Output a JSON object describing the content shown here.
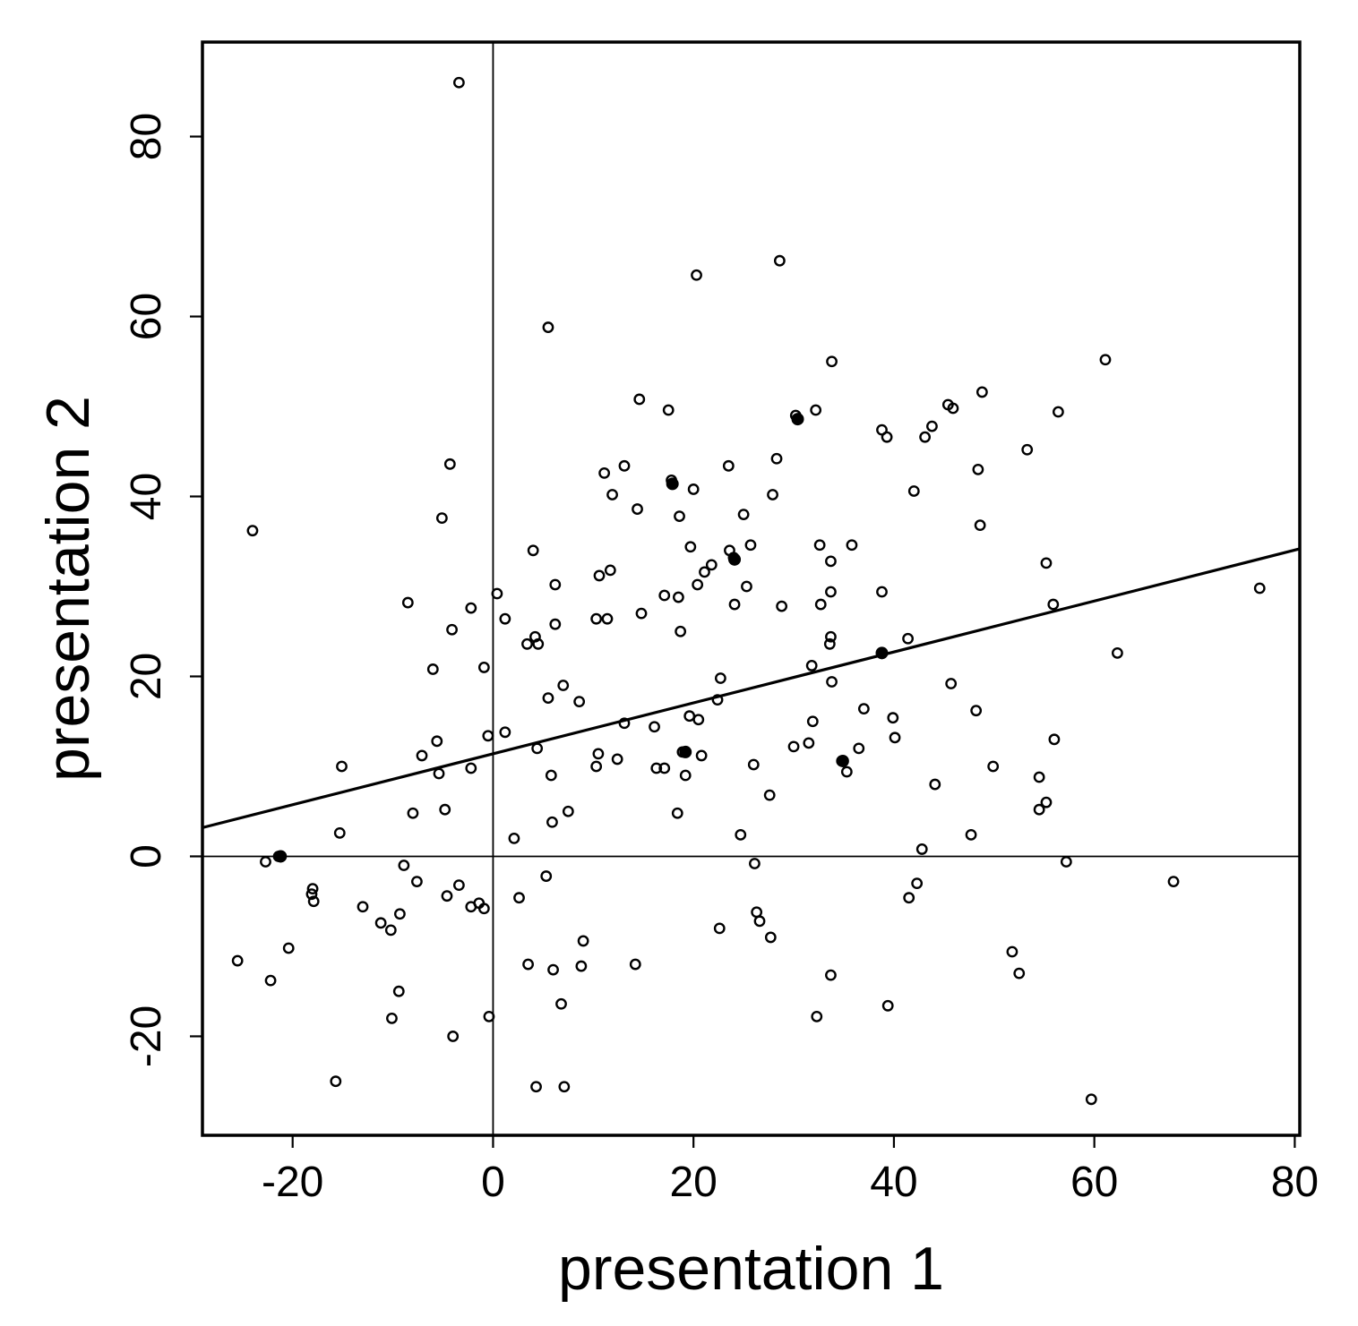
{
  "chart_data": {
    "type": "scatter",
    "xlabel": "presentation 1",
    "ylabel": "presentation 2",
    "xlim": [
      -29,
      80.5
    ],
    "ylim": [
      -31,
      90.5
    ],
    "xticks": [
      -20,
      0,
      20,
      40,
      60,
      80
    ],
    "yticks": [
      -20,
      0,
      20,
      40,
      60,
      80
    ],
    "xtick_labels": [
      "-20",
      "0",
      "20",
      "40",
      "60",
      "80"
    ],
    "ytick_labels": [
      "-20",
      "0",
      "20",
      "40",
      "60",
      "80"
    ],
    "reference_lines": {
      "x": 0,
      "y": 0
    },
    "regression_line": {
      "intercept": 11.4,
      "slope": 0.283
    },
    "grid": false,
    "points": [
      [
        -3.4,
        86.0
      ],
      [
        28.6,
        66.2
      ],
      [
        20.3,
        64.6
      ],
      [
        5.5,
        58.8
      ],
      [
        33.8,
        55.0
      ],
      [
        61.1,
        55.2
      ],
      [
        14.6,
        50.8
      ],
      [
        17.5,
        49.6
      ],
      [
        32.2,
        49.6
      ],
      [
        30.2,
        49.0
      ],
      [
        45.4,
        50.2
      ],
      [
        45.9,
        49.8
      ],
      [
        48.8,
        51.6
      ],
      [
        56.4,
        49.4
      ],
      [
        38.8,
        47.4
      ],
      [
        39.3,
        46.6
      ],
      [
        43.1,
        46.6
      ],
      [
        43.8,
        47.8
      ],
      [
        53.3,
        45.2
      ],
      [
        -4.3,
        43.6
      ],
      [
        11.1,
        42.6
      ],
      [
        13.1,
        43.4
      ],
      [
        23.5,
        43.4
      ],
      [
        28.3,
        44.2
      ],
      [
        48.4,
        43.0
      ],
      [
        17.8,
        41.8
      ],
      [
        20.0,
        40.8
      ],
      [
        11.9,
        40.2
      ],
      [
        27.9,
        40.2
      ],
      [
        42.0,
        40.6
      ],
      [
        -24.0,
        36.2
      ],
      [
        -5.1,
        37.6
      ],
      [
        14.4,
        38.6
      ],
      [
        18.6,
        37.8
      ],
      [
        25.0,
        38.0
      ],
      [
        48.6,
        36.8
      ],
      [
        4.0,
        34.0
      ],
      [
        19.7,
        34.4
      ],
      [
        23.6,
        34.0
      ],
      [
        25.7,
        34.6
      ],
      [
        32.6,
        34.6
      ],
      [
        35.8,
        34.6
      ],
      [
        11.7,
        31.8
      ],
      [
        10.6,
        31.2
      ],
      [
        21.1,
        31.6
      ],
      [
        21.8,
        32.4
      ],
      [
        24.0,
        33.2
      ],
      [
        33.7,
        32.8
      ],
      [
        55.2,
        32.6
      ],
      [
        0.4,
        29.2
      ],
      [
        6.2,
        30.2
      ],
      [
        20.4,
        30.2
      ],
      [
        25.3,
        30.0
      ],
      [
        33.7,
        29.4
      ],
      [
        38.8,
        29.4
      ],
      [
        76.5,
        29.8
      ],
      [
        -8.5,
        28.2
      ],
      [
        -2.2,
        27.6
      ],
      [
        17.1,
        29.0
      ],
      [
        18.5,
        28.8
      ],
      [
        24.1,
        28.0
      ],
      [
        28.8,
        27.8
      ],
      [
        32.7,
        28.0
      ],
      [
        55.9,
        28.0
      ],
      [
        1.2,
        26.4
      ],
      [
        6.2,
        25.8
      ],
      [
        10.3,
        26.4
      ],
      [
        11.4,
        26.4
      ],
      [
        14.8,
        27.0
      ],
      [
        -4.1,
        25.2
      ],
      [
        3.4,
        23.6
      ],
      [
        4.2,
        24.4
      ],
      [
        4.5,
        23.6
      ],
      [
        18.7,
        25.0
      ],
      [
        33.7,
        24.4
      ],
      [
        33.6,
        23.6
      ],
      [
        41.4,
        24.2
      ],
      [
        38.8,
        22.6
      ],
      [
        62.3,
        22.6
      ],
      [
        -6.0,
        20.8
      ],
      [
        -0.9,
        21.0
      ],
      [
        31.8,
        21.2
      ],
      [
        5.5,
        17.6
      ],
      [
        7.0,
        19.0
      ],
      [
        8.6,
        17.2
      ],
      [
        22.7,
        19.8
      ],
      [
        22.4,
        17.4
      ],
      [
        33.8,
        19.4
      ],
      [
        45.7,
        19.2
      ],
      [
        13.1,
        14.8
      ],
      [
        16.1,
        14.4
      ],
      [
        19.6,
        15.6
      ],
      [
        20.5,
        15.2
      ],
      [
        31.9,
        15.0
      ],
      [
        37.0,
        16.4
      ],
      [
        39.9,
        15.4
      ],
      [
        48.2,
        16.2
      ],
      [
        -5.6,
        12.8
      ],
      [
        -0.5,
        13.4
      ],
      [
        1.2,
        13.8
      ],
      [
        4.4,
        12.0
      ],
      [
        10.5,
        11.4
      ],
      [
        31.5,
        12.6
      ],
      [
        30.0,
        12.2
      ],
      [
        36.5,
        12.0
      ],
      [
        40.1,
        13.2
      ],
      [
        56.0,
        13.0
      ],
      [
        -15.1,
        10.0
      ],
      [
        -7.1,
        11.2
      ],
      [
        -5.4,
        9.2
      ],
      [
        -2.2,
        9.8
      ],
      [
        5.8,
        9.0
      ],
      [
        10.3,
        10.0
      ],
      [
        12.4,
        10.8
      ],
      [
        16.3,
        9.8
      ],
      [
        17.1,
        9.8
      ],
      [
        18.9,
        11.6
      ],
      [
        19.2,
        9.0
      ],
      [
        20.8,
        11.2
      ],
      [
        26.0,
        10.2
      ],
      [
        34.8,
        10.6
      ],
      [
        35.3,
        9.4
      ],
      [
        49.9,
        10.0
      ],
      [
        54.5,
        8.8
      ],
      [
        -15.3,
        2.6
      ],
      [
        -8.0,
        4.8
      ],
      [
        -4.8,
        5.2
      ],
      [
        2.1,
        2.0
      ],
      [
        5.9,
        3.8
      ],
      [
        7.5,
        5.0
      ],
      [
        18.4,
        4.8
      ],
      [
        24.7,
        2.4
      ],
      [
        27.6,
        6.8
      ],
      [
        44.1,
        8.0
      ],
      [
        47.7,
        2.4
      ],
      [
        54.5,
        5.2
      ],
      [
        55.2,
        6.0
      ],
      [
        42.8,
        0.8
      ],
      [
        -22.7,
        -0.6
      ],
      [
        -21.4,
        0.0
      ],
      [
        -8.9,
        -1.0
      ],
      [
        -7.6,
        -2.8
      ],
      [
        5.3,
        -2.2
      ],
      [
        26.1,
        -0.8
      ],
      [
        57.2,
        -0.6
      ],
      [
        67.9,
        -2.8
      ],
      [
        -18.0,
        -3.6
      ],
      [
        -18.1,
        -4.2
      ],
      [
        -17.9,
        -5.0
      ],
      [
        -13.0,
        -5.6
      ],
      [
        -11.2,
        -7.4
      ],
      [
        -10.2,
        -8.2
      ],
      [
        -9.3,
        -6.4
      ],
      [
        -4.6,
        -4.4
      ],
      [
        -3.4,
        -3.2
      ],
      [
        -2.2,
        -5.6
      ],
      [
        -1.4,
        -5.2
      ],
      [
        -0.9,
        -5.8
      ],
      [
        2.6,
        -4.6
      ],
      [
        26.3,
        -6.2
      ],
      [
        26.6,
        -7.2
      ],
      [
        41.5,
        -4.6
      ],
      [
        42.3,
        -3.0
      ],
      [
        -25.5,
        -11.6
      ],
      [
        -22.2,
        -13.8
      ],
      [
        -20.4,
        -10.2
      ],
      [
        -9.4,
        -15.0
      ],
      [
        -10.1,
        -18.0
      ],
      [
        -4.0,
        -20.0
      ],
      [
        -0.4,
        -17.8
      ],
      [
        3.5,
        -12.0
      ],
      [
        6.0,
        -12.6
      ],
      [
        6.8,
        -16.4
      ],
      [
        8.8,
        -12.2
      ],
      [
        9.0,
        -9.4
      ],
      [
        14.2,
        -12.0
      ],
      [
        22.6,
        -8.0
      ],
      [
        27.7,
        -9.0
      ],
      [
        32.3,
        -17.8
      ],
      [
        33.7,
        -13.2
      ],
      [
        39.4,
        -16.6
      ],
      [
        51.8,
        -10.6
      ],
      [
        52.5,
        -13.0
      ],
      [
        -15.7,
        -25.0
      ],
      [
        4.3,
        -25.6
      ],
      [
        7.1,
        -25.6
      ],
      [
        59.7,
        -27.0
      ]
    ],
    "filled_points": [
      [
        17.9,
        41.4
      ],
      [
        30.4,
        48.6
      ],
      [
        19.2,
        11.6
      ],
      [
        34.9,
        10.6
      ],
      [
        -21.2,
        0.0
      ],
      [
        38.8,
        22.6
      ],
      [
        24.1,
        33.0
      ]
    ]
  }
}
